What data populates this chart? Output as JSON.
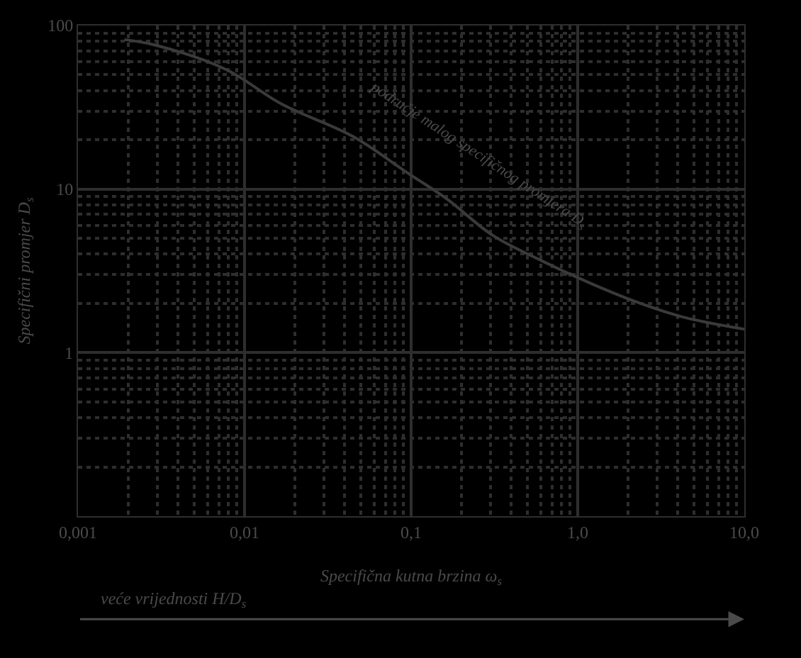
{
  "chart_data": {
    "type": "line",
    "xlabel": "Specifična kutna brzina ω$_{s}$",
    "ylabel": "Specifični promjer D$_{s}$",
    "x": [
      0.0019,
      0.0029,
      0.0077,
      0.0168,
      0.0446,
      0.097,
      0.164,
      0.31,
      0.59,
      1.15,
      2.2,
      4.2,
      10
    ],
    "series": [
      {
        "color": "#3a3a3a",
        "values": [
          82,
          76,
          54,
          33,
          21,
          12.4,
          8.7,
          5.2,
          3.7,
          2.7,
          2.06,
          1.66,
          1.39
        ]
      }
    ],
    "xlim": [
      0.001,
      10
    ],
    "ylim": [
      0.1,
      100
    ],
    "xticks": [
      {
        "value": 0.001,
        "label": "0,001"
      },
      {
        "value": 0.01,
        "label": "0,01"
      },
      {
        "value": 0.1,
        "label": "0,1"
      },
      {
        "value": 1,
        "label": "1,0"
      },
      {
        "value": 10,
        "label": "10,0"
      }
    ],
    "yticks": [
      {
        "value": 0.1,
        "label": null
      },
      1,
      10,
      100
    ],
    "log": "xy",
    "grid": true,
    "marker": "none",
    "line_style": "solid",
    "annotations": [
      "područje malog specifičnog promjera D$_{s}$",
      "veće vrijednosti H/D$_{s}$"
    ]
  }
}
